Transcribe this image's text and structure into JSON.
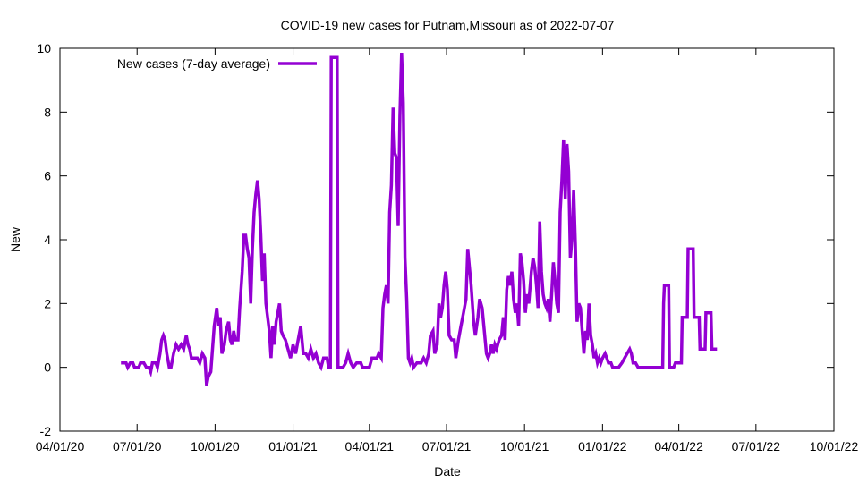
{
  "chart_data": {
    "type": "line",
    "title": "COVID-19 new cases for Putnam,Missouri as of 2022-07-07",
    "xlabel": "Date",
    "ylabel": "New",
    "ylim": [
      -2,
      10
    ],
    "xlim": [
      "2020-04-01",
      "2022-10-01"
    ],
    "grid": false,
    "legend_position": "top-left",
    "y_ticks": [
      -2,
      0,
      2,
      4,
      6,
      8,
      10
    ],
    "x_ticks": [
      {
        "date": "2020-04-01",
        "label": "04/01/20"
      },
      {
        "date": "2020-07-01",
        "label": "07/01/20"
      },
      {
        "date": "2020-10-01",
        "label": "10/01/20"
      },
      {
        "date": "2021-01-01",
        "label": "01/01/21"
      },
      {
        "date": "2021-04-01",
        "label": "04/01/21"
      },
      {
        "date": "2021-07-01",
        "label": "07/01/21"
      },
      {
        "date": "2021-10-01",
        "label": "10/01/21"
      },
      {
        "date": "2022-01-01",
        "label": "01/01/22"
      },
      {
        "date": "2022-04-01",
        "label": "04/01/22"
      },
      {
        "date": "2022-07-01",
        "label": "07/01/22"
      },
      {
        "date": "2022-10-01",
        "label": "10/01/22"
      }
    ],
    "series": [
      {
        "name": "New cases (7-day average)",
        "color": "#9400d3",
        "points": [
          [
            "2020-06-12",
            0.14
          ],
          [
            "2020-06-18",
            0.14
          ],
          [
            "2020-06-20",
            0
          ],
          [
            "2020-06-23",
            0.14
          ],
          [
            "2020-06-26",
            0.14
          ],
          [
            "2020-06-28",
            0
          ],
          [
            "2020-07-03",
            0
          ],
          [
            "2020-07-05",
            0.14
          ],
          [
            "2020-07-09",
            0.14
          ],
          [
            "2020-07-12",
            0
          ],
          [
            "2020-07-15",
            0
          ],
          [
            "2020-07-17",
            -0.14
          ],
          [
            "2020-07-19",
            0.14
          ],
          [
            "2020-07-23",
            0.14
          ],
          [
            "2020-07-25",
            0
          ],
          [
            "2020-07-28",
            0.43
          ],
          [
            "2020-07-30",
            0.86
          ],
          [
            "2020-08-01",
            1.0
          ],
          [
            "2020-08-03",
            0.86
          ],
          [
            "2020-08-05",
            0.43
          ],
          [
            "2020-08-08",
            0
          ],
          [
            "2020-08-10",
            0
          ],
          [
            "2020-08-13",
            0.43
          ],
          [
            "2020-08-16",
            0.71
          ],
          [
            "2020-08-19",
            0.57
          ],
          [
            "2020-08-22",
            0.71
          ],
          [
            "2020-08-25",
            0.57
          ],
          [
            "2020-08-28",
            1.0
          ],
          [
            "2020-08-30",
            0.71
          ],
          [
            "2020-09-01",
            0.57
          ],
          [
            "2020-09-03",
            0.29
          ],
          [
            "2020-09-10",
            0.29
          ],
          [
            "2020-09-13",
            0.14
          ],
          [
            "2020-09-16",
            0.43
          ],
          [
            "2020-09-19",
            0.29
          ],
          [
            "2020-09-21",
            -0.57
          ],
          [
            "2020-09-23",
            -0.29
          ],
          [
            "2020-09-26",
            -0.14
          ],
          [
            "2020-09-28",
            0.57
          ],
          [
            "2020-09-30",
            1.29
          ],
          [
            "2020-10-03",
            1.86
          ],
          [
            "2020-10-05",
            1.29
          ],
          [
            "2020-10-07",
            1.57
          ],
          [
            "2020-10-09",
            0.43
          ],
          [
            "2020-10-12",
            0.71
          ],
          [
            "2020-10-14",
            1.14
          ],
          [
            "2020-10-17",
            1.43
          ],
          [
            "2020-10-19",
            0.86
          ],
          [
            "2020-10-21",
            0.71
          ],
          [
            "2020-10-23",
            1.14
          ],
          [
            "2020-10-25",
            0.86
          ],
          [
            "2020-10-28",
            0.86
          ],
          [
            "2020-10-30",
            1.86
          ],
          [
            "2020-11-02",
            3.0
          ],
          [
            "2020-11-04",
            4.14
          ],
          [
            "2020-11-06",
            4.14
          ],
          [
            "2020-11-08",
            3.71
          ],
          [
            "2020-11-10",
            3.43
          ],
          [
            "2020-11-12",
            2.0
          ],
          [
            "2020-11-14",
            3.71
          ],
          [
            "2020-11-16",
            4.86
          ],
          [
            "2020-11-18",
            5.43
          ],
          [
            "2020-11-20",
            5.86
          ],
          [
            "2020-11-22",
            5.29
          ],
          [
            "2020-11-24",
            4.14
          ],
          [
            "2020-11-26",
            2.71
          ],
          [
            "2020-11-28",
            3.57
          ],
          [
            "2020-11-30",
            2.0
          ],
          [
            "2020-12-02",
            1.57
          ],
          [
            "2020-12-04",
            1.14
          ],
          [
            "2020-12-06",
            0.29
          ],
          [
            "2020-12-08",
            1.29
          ],
          [
            "2020-12-10",
            0.71
          ],
          [
            "2020-12-12",
            1.43
          ],
          [
            "2020-12-14",
            1.71
          ],
          [
            "2020-12-16",
            2.0
          ],
          [
            "2020-12-18",
            1.14
          ],
          [
            "2020-12-20",
            1.0
          ],
          [
            "2020-12-23",
            0.86
          ],
          [
            "2020-12-26",
            0.57
          ],
          [
            "2020-12-29",
            0.29
          ],
          [
            "2021-01-01",
            0.71
          ],
          [
            "2021-01-04",
            0.43
          ],
          [
            "2021-01-07",
            0.86
          ],
          [
            "2021-01-10",
            1.29
          ],
          [
            "2021-01-13",
            0.43
          ],
          [
            "2021-01-16",
            0.43
          ],
          [
            "2021-01-19",
            0.29
          ],
          [
            "2021-01-22",
            0.57
          ],
          [
            "2021-01-25",
            0.29
          ],
          [
            "2021-01-28",
            0.43
          ],
          [
            "2021-01-31",
            0.14
          ],
          [
            "2021-02-03",
            0
          ],
          [
            "2021-02-06",
            0.29
          ],
          [
            "2021-02-10",
            0.29
          ],
          [
            "2021-02-12",
            0
          ],
          [
            "2021-02-14",
            0
          ],
          [
            "2021-02-15",
            9.71
          ],
          [
            "2021-02-22",
            9.71
          ],
          [
            "2021-02-23",
            0
          ],
          [
            "2021-03-01",
            0
          ],
          [
            "2021-03-04",
            0.14
          ],
          [
            "2021-03-07",
            0.43
          ],
          [
            "2021-03-10",
            0.14
          ],
          [
            "2021-03-13",
            0
          ],
          [
            "2021-03-17",
            0.14
          ],
          [
            "2021-03-22",
            0.14
          ],
          [
            "2021-03-24",
            0
          ],
          [
            "2021-04-01",
            0
          ],
          [
            "2021-04-04",
            0.29
          ],
          [
            "2021-04-10",
            0.29
          ],
          [
            "2021-04-12",
            0.43
          ],
          [
            "2021-04-15",
            0.29
          ],
          [
            "2021-04-17",
            1.86
          ],
          [
            "2021-04-19",
            2.29
          ],
          [
            "2021-04-21",
            2.57
          ],
          [
            "2021-04-23",
            2.0
          ],
          [
            "2021-04-25",
            4.86
          ],
          [
            "2021-04-27",
            5.71
          ],
          [
            "2021-04-29",
            8.14
          ],
          [
            "2021-05-01",
            6.71
          ],
          [
            "2021-05-03",
            6.57
          ],
          [
            "2021-05-05",
            4.43
          ],
          [
            "2021-05-07",
            7.86
          ],
          [
            "2021-05-09",
            9.86
          ],
          [
            "2021-05-11",
            8.29
          ],
          [
            "2021-05-13",
            3.43
          ],
          [
            "2021-05-15",
            2.14
          ],
          [
            "2021-05-17",
            0.29
          ],
          [
            "2021-05-19",
            0.14
          ],
          [
            "2021-05-21",
            0.29
          ],
          [
            "2021-05-23",
            0
          ],
          [
            "2021-05-27",
            0.14
          ],
          [
            "2021-06-01",
            0.14
          ],
          [
            "2021-06-04",
            0.29
          ],
          [
            "2021-06-07",
            0.14
          ],
          [
            "2021-06-10",
            0.43
          ],
          [
            "2021-06-12",
            1.0
          ],
          [
            "2021-06-15",
            1.14
          ],
          [
            "2021-06-17",
            0.43
          ],
          [
            "2021-06-20",
            0.71
          ],
          [
            "2021-06-22",
            2.0
          ],
          [
            "2021-06-24",
            1.57
          ],
          [
            "2021-06-26",
            1.86
          ],
          [
            "2021-06-28",
            2.57
          ],
          [
            "2021-06-30",
            3.0
          ],
          [
            "2021-07-02",
            2.43
          ],
          [
            "2021-07-04",
            1.0
          ],
          [
            "2021-07-07",
            0.86
          ],
          [
            "2021-07-10",
            0.86
          ],
          [
            "2021-07-12",
            0.29
          ],
          [
            "2021-07-15",
            0.86
          ],
          [
            "2021-07-18",
            1.29
          ],
          [
            "2021-07-21",
            1.71
          ],
          [
            "2021-07-24",
            2.14
          ],
          [
            "2021-07-26",
            3.71
          ],
          [
            "2021-07-28",
            3.14
          ],
          [
            "2021-07-30",
            2.57
          ],
          [
            "2021-08-02",
            1.43
          ],
          [
            "2021-08-04",
            1.0
          ],
          [
            "2021-08-07",
            1.57
          ],
          [
            "2021-08-09",
            2.14
          ],
          [
            "2021-08-12",
            1.86
          ],
          [
            "2021-08-15",
            1.0
          ],
          [
            "2021-08-17",
            0.43
          ],
          [
            "2021-08-19",
            0.29
          ],
          [
            "2021-08-21",
            0.43
          ],
          [
            "2021-08-23",
            0.71
          ],
          [
            "2021-08-25",
            0.43
          ],
          [
            "2021-08-27",
            0.71
          ],
          [
            "2021-08-29",
            0.57
          ],
          [
            "2021-09-01",
            0.86
          ],
          [
            "2021-09-04",
            1.0
          ],
          [
            "2021-09-06",
            1.57
          ],
          [
            "2021-09-08",
            0.86
          ],
          [
            "2021-09-10",
            2.43
          ],
          [
            "2021-09-12",
            2.86
          ],
          [
            "2021-09-14",
            2.57
          ],
          [
            "2021-09-16",
            3.0
          ],
          [
            "2021-09-18",
            2.14
          ],
          [
            "2021-09-20",
            1.71
          ],
          [
            "2021-09-22",
            2.0
          ],
          [
            "2021-09-24",
            1.29
          ],
          [
            "2021-09-26",
            3.57
          ],
          [
            "2021-09-28",
            3.29
          ],
          [
            "2021-09-30",
            2.71
          ],
          [
            "2021-10-02",
            1.71
          ],
          [
            "2021-10-04",
            2.29
          ],
          [
            "2021-10-06",
            2.0
          ],
          [
            "2021-10-09",
            3.0
          ],
          [
            "2021-10-11",
            3.43
          ],
          [
            "2021-10-13",
            3.14
          ],
          [
            "2021-10-15",
            2.57
          ],
          [
            "2021-10-17",
            1.86
          ],
          [
            "2021-10-19",
            4.57
          ],
          [
            "2021-10-21",
            3.0
          ],
          [
            "2021-10-23",
            2.29
          ],
          [
            "2021-10-25",
            2.0
          ],
          [
            "2021-10-27",
            1.86
          ],
          [
            "2021-10-29",
            2.14
          ],
          [
            "2021-10-31",
            1.43
          ],
          [
            "2021-11-02",
            2.29
          ],
          [
            "2021-11-04",
            3.29
          ],
          [
            "2021-11-06",
            2.71
          ],
          [
            "2021-11-08",
            2.0
          ],
          [
            "2021-11-10",
            1.71
          ],
          [
            "2021-11-12",
            4.86
          ],
          [
            "2021-11-14",
            5.86
          ],
          [
            "2021-11-16",
            7.14
          ],
          [
            "2021-11-18",
            5.29
          ],
          [
            "2021-11-20",
            7.0
          ],
          [
            "2021-11-22",
            6.14
          ],
          [
            "2021-11-24",
            3.43
          ],
          [
            "2021-11-26",
            4.0
          ],
          [
            "2021-11-28",
            5.57
          ],
          [
            "2021-11-30",
            3.86
          ],
          [
            "2021-12-02",
            1.43
          ],
          [
            "2021-12-04",
            2.0
          ],
          [
            "2021-12-06",
            1.86
          ],
          [
            "2021-12-08",
            1.14
          ],
          [
            "2021-12-10",
            0.43
          ],
          [
            "2021-12-12",
            1.14
          ],
          [
            "2021-12-14",
            0.86
          ],
          [
            "2021-12-16",
            2.0
          ],
          [
            "2021-12-18",
            1.0
          ],
          [
            "2021-12-20",
            0.71
          ],
          [
            "2021-12-22",
            0.29
          ],
          [
            "2021-12-24",
            0.43
          ],
          [
            "2021-12-26",
            0.14
          ],
          [
            "2021-12-28",
            0.29
          ],
          [
            "2021-12-30",
            0.14
          ],
          [
            "2022-01-01",
            0.29
          ],
          [
            "2022-01-04",
            0.43
          ],
          [
            "2022-01-06",
            0.29
          ],
          [
            "2022-01-08",
            0.14
          ],
          [
            "2022-01-11",
            0.14
          ],
          [
            "2022-01-13",
            0
          ],
          [
            "2022-01-16",
            0
          ],
          [
            "2022-01-20",
            0
          ],
          [
            "2022-01-24",
            0.14
          ],
          [
            "2022-01-27",
            0.29
          ],
          [
            "2022-01-30",
            0.43
          ],
          [
            "2022-02-02",
            0.57
          ],
          [
            "2022-02-04",
            0.43
          ],
          [
            "2022-02-06",
            0.14
          ],
          [
            "2022-02-09",
            0.14
          ],
          [
            "2022-02-12",
            0
          ],
          [
            "2022-02-26",
            0
          ],
          [
            "2022-02-28",
            0
          ],
          [
            "2022-03-01",
            0
          ],
          [
            "2022-03-10",
            0
          ],
          [
            "2022-03-13",
            0
          ],
          [
            "2022-03-14",
            2.0
          ],
          [
            "2022-03-15",
            2.57
          ],
          [
            "2022-03-20",
            2.57
          ],
          [
            "2022-03-21",
            0
          ],
          [
            "2022-03-26",
            0
          ],
          [
            "2022-03-28",
            0.14
          ],
          [
            "2022-04-01",
            0.14
          ],
          [
            "2022-04-04",
            0.14
          ],
          [
            "2022-04-05",
            1.57
          ],
          [
            "2022-04-11",
            1.57
          ],
          [
            "2022-04-12",
            3.71
          ],
          [
            "2022-04-18",
            3.71
          ],
          [
            "2022-04-19",
            1.57
          ],
          [
            "2022-04-25",
            1.57
          ],
          [
            "2022-04-26",
            0.57
          ],
          [
            "2022-05-02",
            0.57
          ],
          [
            "2022-05-03",
            1.71
          ],
          [
            "2022-05-09",
            1.71
          ],
          [
            "2022-05-10",
            0.57
          ],
          [
            "2022-05-16",
            0.57
          ]
        ]
      }
    ]
  }
}
